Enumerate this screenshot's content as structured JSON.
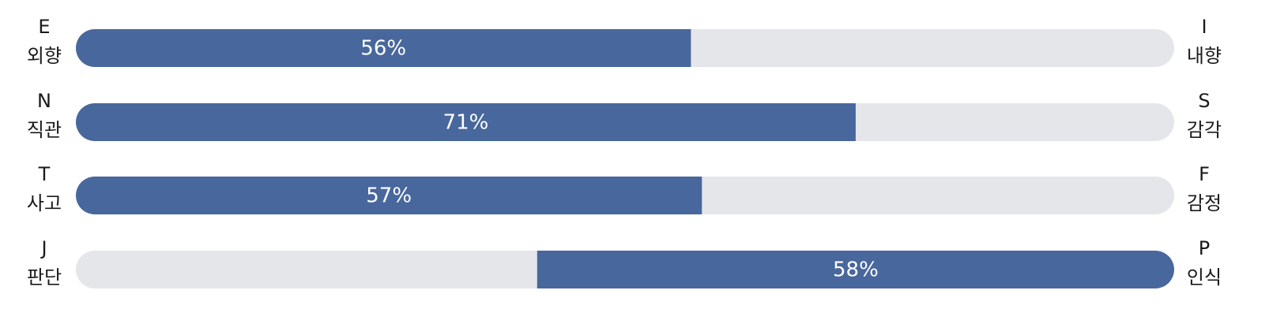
{
  "chart_data": {
    "type": "bar",
    "orientation": "horizontal",
    "left_letters": [
      "E",
      "N",
      "T",
      "J"
    ],
    "left_names": [
      "외향",
      "직관",
      "사고",
      "판단"
    ],
    "right_letters": [
      "I",
      "S",
      "F",
      "P"
    ],
    "right_names": [
      "내향",
      "감각",
      "감정",
      "인식"
    ],
    "values": [
      56,
      71,
      57,
      58
    ],
    "value_labels": [
      "56%",
      "71%",
      "57%",
      "58%"
    ],
    "sides": [
      "left",
      "left",
      "left",
      "right"
    ],
    "xlim": [
      0,
      100
    ],
    "color": "#48679c",
    "track_color": "#e5e6ea"
  }
}
